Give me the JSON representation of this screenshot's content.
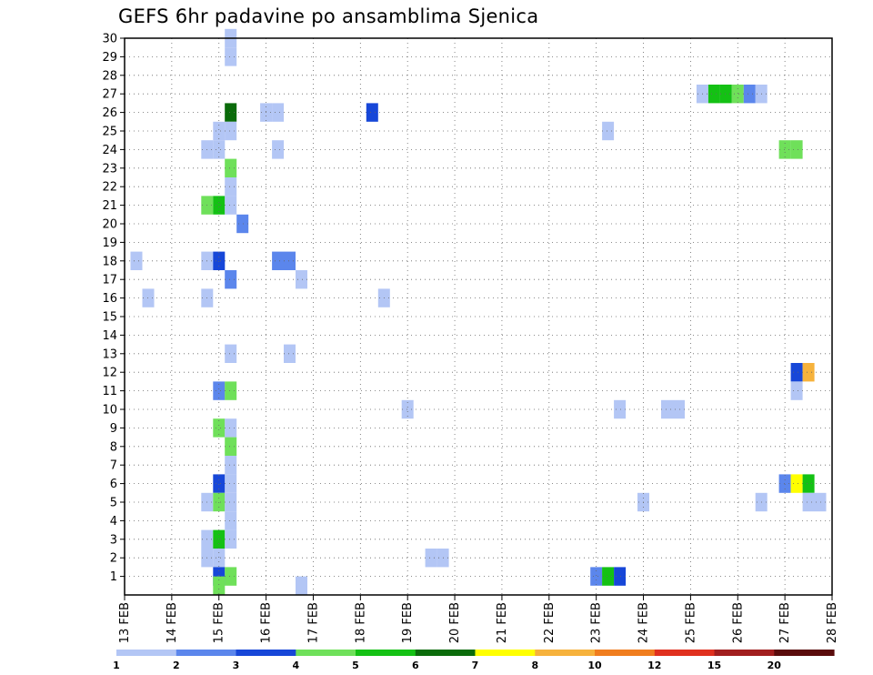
{
  "chart_data": {
    "type": "heatmap",
    "title": "GEFS 6hr padavine po ansamblima Sjenica",
    "x_tick_labels": [
      "13 FEB",
      "14 FEB",
      "15 FEB",
      "16 FEB",
      "17 FEB",
      "18 FEB",
      "19 FEB",
      "20 FEB",
      "21 FEB",
      "22 FEB",
      "23 FEB",
      "24 FEB",
      "25 FEB",
      "26 FEB",
      "27 FEB",
      "28 FEB"
    ],
    "y_tick_labels": [
      "1",
      "2",
      "3",
      "4",
      "5",
      "6",
      "7",
      "8",
      "9",
      "10",
      "11",
      "12",
      "13",
      "14",
      "15",
      "16",
      "17",
      "18",
      "19",
      "20",
      "21",
      "22",
      "23",
      "24",
      "25",
      "26",
      "27",
      "28",
      "29",
      "30"
    ],
    "x_range_days": [
      13,
      28
    ],
    "y_range": [
      0,
      30
    ],
    "grid": true,
    "color_scale": {
      "labels": [
        "1",
        "2",
        "3",
        "4",
        "5",
        "6",
        "7",
        "8",
        "10",
        "12",
        "15",
        "20"
      ],
      "colors": [
        "#b3c6f5",
        "#5b86ec",
        "#1747d8",
        "#6fe05a",
        "#14c114",
        "#0a6b0a",
        "#ffff00",
        "#f6b23c",
        "#f07d1e",
        "#e0301e",
        "#a11e1e",
        "#5a0c0c"
      ]
    },
    "cells": [
      {
        "day": 15.25,
        "member": 30,
        "class": 1
      },
      {
        "day": 15.25,
        "member": 29,
        "class": 1
      },
      {
        "day": 25.25,
        "member": 27,
        "class": 1
      },
      {
        "day": 25.5,
        "member": 27,
        "class": 5
      },
      {
        "day": 25.75,
        "member": 27,
        "class": 5
      },
      {
        "day": 26.0,
        "member": 27,
        "class": 4
      },
      {
        "day": 26.25,
        "member": 27,
        "class": 2
      },
      {
        "day": 26.5,
        "member": 27,
        "class": 1
      },
      {
        "day": 15.25,
        "member": 26,
        "class": 6
      },
      {
        "day": 16.0,
        "member": 26,
        "class": 1
      },
      {
        "day": 16.25,
        "member": 26,
        "class": 1
      },
      {
        "day": 18.25,
        "member": 26,
        "class": 3
      },
      {
        "day": 15.0,
        "member": 25,
        "class": 1
      },
      {
        "day": 15.25,
        "member": 25,
        "class": 1
      },
      {
        "day": 23.25,
        "member": 25,
        "class": 1
      },
      {
        "day": 14.75,
        "member": 24,
        "class": 1
      },
      {
        "day": 15.0,
        "member": 24,
        "class": 1
      },
      {
        "day": 16.25,
        "member": 24,
        "class": 1
      },
      {
        "day": 27.0,
        "member": 24,
        "class": 4
      },
      {
        "day": 27.25,
        "member": 24,
        "class": 4
      },
      {
        "day": 15.25,
        "member": 23,
        "class": 4
      },
      {
        "day": 15.25,
        "member": 22,
        "class": 1
      },
      {
        "day": 14.75,
        "member": 21,
        "class": 4
      },
      {
        "day": 15.0,
        "member": 21,
        "class": 5
      },
      {
        "day": 15.25,
        "member": 21,
        "class": 1
      },
      {
        "day": 15.5,
        "member": 20,
        "class": 2
      },
      {
        "day": 13.25,
        "member": 18,
        "class": 1
      },
      {
        "day": 14.75,
        "member": 18,
        "class": 1
      },
      {
        "day": 15.0,
        "member": 18,
        "class": 3
      },
      {
        "day": 16.25,
        "member": 18,
        "class": 2
      },
      {
        "day": 16.5,
        "member": 18,
        "class": 2
      },
      {
        "day": 15.25,
        "member": 17,
        "class": 2
      },
      {
        "day": 16.75,
        "member": 17,
        "class": 1
      },
      {
        "day": 13.5,
        "member": 16,
        "class": 1
      },
      {
        "day": 14.75,
        "member": 16,
        "class": 1
      },
      {
        "day": 18.5,
        "member": 16,
        "class": 1
      },
      {
        "day": 15.25,
        "member": 13,
        "class": 1
      },
      {
        "day": 16.5,
        "member": 13,
        "class": 1
      },
      {
        "day": 27.25,
        "member": 12,
        "class": 3
      },
      {
        "day": 27.5,
        "member": 12,
        "class": 8
      },
      {
        "day": 15.0,
        "member": 11,
        "class": 2
      },
      {
        "day": 15.25,
        "member": 11,
        "class": 4
      },
      {
        "day": 27.25,
        "member": 11,
        "class": 1
      },
      {
        "day": 19.0,
        "member": 10,
        "class": 1
      },
      {
        "day": 23.5,
        "member": 10,
        "class": 1
      },
      {
        "day": 24.5,
        "member": 10,
        "class": 1
      },
      {
        "day": 24.75,
        "member": 10,
        "class": 1
      },
      {
        "day": 15.0,
        "member": 9,
        "class": 4
      },
      {
        "day": 15.25,
        "member": 9,
        "class": 1
      },
      {
        "day": 15.25,
        "member": 8,
        "class": 4
      },
      {
        "day": 15.25,
        "member": 7,
        "class": 1
      },
      {
        "day": 15.0,
        "member": 6,
        "class": 3
      },
      {
        "day": 15.25,
        "member": 6,
        "class": 1
      },
      {
        "day": 27.0,
        "member": 6,
        "class": 2
      },
      {
        "day": 27.25,
        "member": 6,
        "class": 7
      },
      {
        "day": 27.5,
        "member": 6,
        "class": 5
      },
      {
        "day": 14.75,
        "member": 5,
        "class": 1
      },
      {
        "day": 15.0,
        "member": 5,
        "class": 4
      },
      {
        "day": 15.25,
        "member": 5,
        "class": 1
      },
      {
        "day": 24.0,
        "member": 5,
        "class": 1
      },
      {
        "day": 26.5,
        "member": 5,
        "class": 1
      },
      {
        "day": 27.5,
        "member": 5,
        "class": 1
      },
      {
        "day": 27.75,
        "member": 5,
        "class": 1
      },
      {
        "day": 15.25,
        "member": 4,
        "class": 1
      },
      {
        "day": 14.75,
        "member": 3,
        "class": 1
      },
      {
        "day": 15.0,
        "member": 3,
        "class": 5
      },
      {
        "day": 15.25,
        "member": 3,
        "class": 1
      },
      {
        "day": 14.75,
        "member": 2,
        "class": 1
      },
      {
        "day": 15.0,
        "member": 2,
        "class": 1
      },
      {
        "day": 19.5,
        "member": 2,
        "class": 1
      },
      {
        "day": 19.75,
        "member": 2,
        "class": 1
      },
      {
        "day": 15.0,
        "member": 1,
        "class": 3
      },
      {
        "day": 15.25,
        "member": 1,
        "class": 4
      },
      {
        "day": 23.0,
        "member": 1,
        "class": 2
      },
      {
        "day": 23.25,
        "member": 1,
        "class": 5
      },
      {
        "day": 23.5,
        "member": 1,
        "class": 3
      },
      {
        "day": 15.0,
        "member": 0.5,
        "class": 4
      },
      {
        "day": 16.75,
        "member": 0.5,
        "class": 1
      }
    ]
  }
}
